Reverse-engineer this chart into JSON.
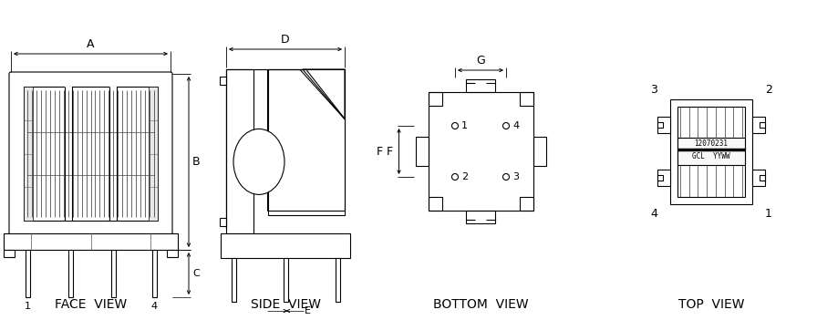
{
  "bg_color": "#ffffff",
  "line_color": "#000000",
  "labels": {
    "face_view": "FACE  VIEW",
    "side_view": "SIDE  VIEW",
    "bottom_view": "BOTTOM  VIEW",
    "top_view": "TOP  VIEW",
    "part_num": "12070231",
    "gcl": "GCL  YYWW"
  }
}
